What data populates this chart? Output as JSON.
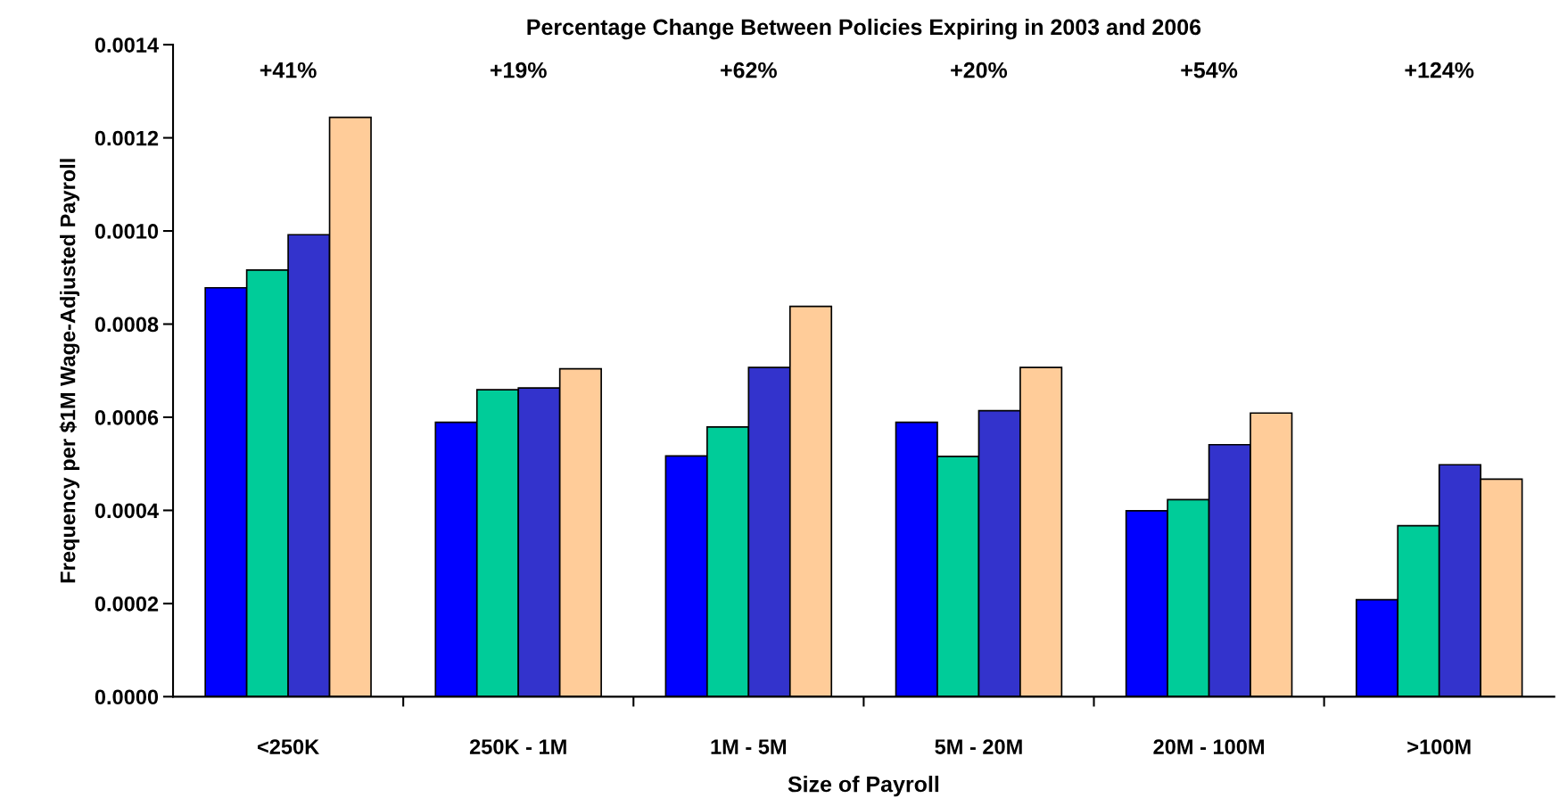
{
  "chart_data": {
    "type": "bar",
    "title": "Percentage Change Between Policies Expiring in 2003 and 2006",
    "xlabel": "Size of Payroll",
    "ylabel": "Frequency per $1M Wage-Adjusted Payroll",
    "categories": [
      "<250K",
      "250K - 1M",
      "1M - 5M",
      "5M - 20M",
      "20M - 100M",
      ">100M"
    ],
    "series": [
      {
        "color": "#0000ff",
        "values": [
          0.000878,
          0.000589,
          0.000517,
          0.000589,
          0.000399,
          0.000208
        ]
      },
      {
        "color": "#00cc99",
        "values": [
          0.000916,
          0.000659,
          0.000579,
          0.000516,
          0.000423,
          0.000367
        ]
      },
      {
        "color": "#3333cc",
        "values": [
          0.000992,
          0.000663,
          0.000707,
          0.000614,
          0.000541,
          0.000498
        ]
      },
      {
        "color": "#ffcc99",
        "values": [
          0.001244,
          0.000704,
          0.000838,
          0.000707,
          0.000609,
          0.000467
        ]
      }
    ],
    "ylim": [
      0,
      0.0014
    ],
    "yticks": [
      {
        "value": 0,
        "label": "0.0000"
      },
      {
        "value": 0.0002,
        "label": "0.0002"
      },
      {
        "value": 0.0004,
        "label": "0.0004"
      },
      {
        "value": 0.0006,
        "label": "0.0006"
      },
      {
        "value": 0.0008,
        "label": "0.0008"
      },
      {
        "value": 0.001,
        "label": "0.0010"
      },
      {
        "value": 0.0012,
        "label": "0.0012"
      },
      {
        "value": 0.0014,
        "label": "0.0014"
      }
    ],
    "annotations": [
      "+41%",
      "+19%",
      "+62%",
      "+20%",
      "+54%",
      "+124%"
    ],
    "grid": false,
    "legend": false
  }
}
